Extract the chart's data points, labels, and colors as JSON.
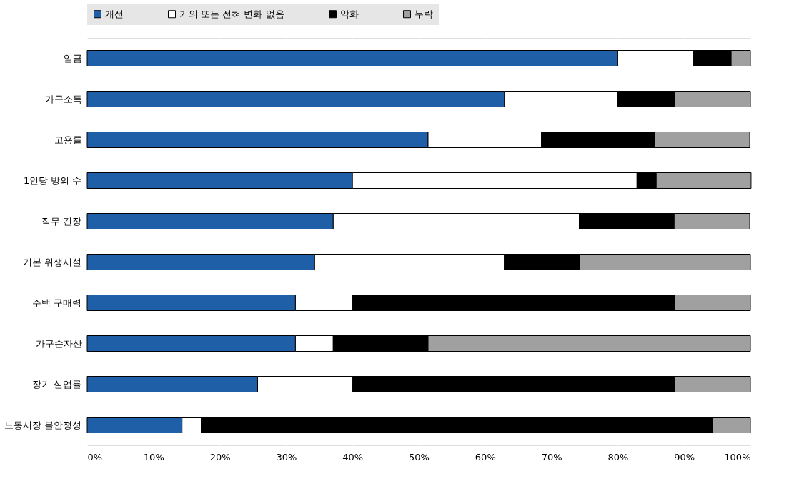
{
  "chart_data": {
    "type": "bar",
    "orientation": "horizontal",
    "stacked": true,
    "legend": "top",
    "grid": "x",
    "categories": [
      "임금",
      "가구소득",
      "고용률",
      "1인당 방의 수",
      "직무 긴장",
      "기본 위생시설",
      "주택 구매력",
      "가구순자산",
      "장기 실업률",
      "노동시장 불안정성"
    ],
    "series": [
      {
        "name": "개선",
        "color": "#1f5fa8",
        "values": [
          80.0,
          62.9,
          51.4,
          40.0,
          37.1,
          34.3,
          31.4,
          31.4,
          25.7,
          14.3
        ]
      },
      {
        "name": "거의 또는 전혀 변화 없음",
        "color": "#ffffff",
        "values": [
          11.4,
          17.1,
          17.1,
          42.9,
          37.1,
          28.6,
          8.6,
          5.7,
          14.3,
          2.9
        ]
      },
      {
        "name": "악화",
        "color": "#000000",
        "values": [
          5.7,
          8.6,
          17.1,
          2.9,
          14.3,
          11.4,
          48.6,
          14.3,
          48.6,
          77.1
        ]
      },
      {
        "name": "누락",
        "color": "#a0a0a0",
        "values": [
          2.9,
          11.4,
          14.3,
          14.3,
          11.4,
          25.7,
          11.4,
          48.6,
          11.4,
          5.7
        ]
      }
    ],
    "xlim": [
      0,
      100
    ],
    "xticks": [
      {
        "value": 0,
        "label": "0%"
      },
      {
        "value": 10,
        "label": "10%"
      },
      {
        "value": 20,
        "label": "20%"
      },
      {
        "value": 30,
        "label": "30%"
      },
      {
        "value": 40,
        "label": "40%"
      },
      {
        "value": 50,
        "label": "50%"
      },
      {
        "value": 60,
        "label": "60%"
      },
      {
        "value": 70,
        "label": "70%"
      },
      {
        "value": 80,
        "label": "80%"
      },
      {
        "value": 90,
        "label": "90%"
      },
      {
        "value": 100,
        "label": "100%"
      }
    ]
  }
}
